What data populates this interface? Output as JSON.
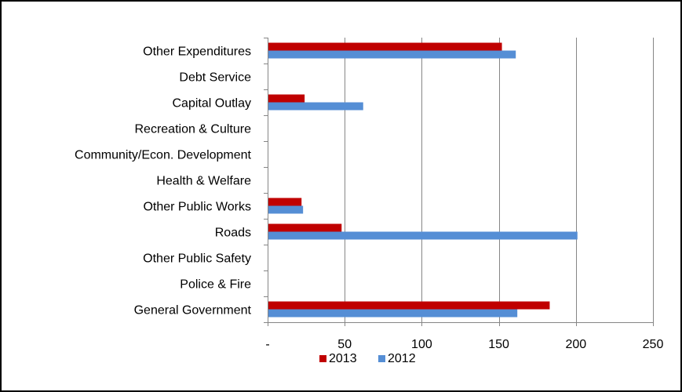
{
  "chart_data": {
    "type": "bar",
    "orientation": "horizontal",
    "categories": [
      "Other Expenditures",
      "Debt Service",
      "Capital Outlay",
      "Recreation & Culture",
      "Community/Econ. Development",
      "Health & Welfare",
      "Other Public Works",
      "Roads",
      "Other Public Safety",
      "Police & Fire",
      "General Government"
    ],
    "series": [
      {
        "name": "2013",
        "color": "#C00000",
        "values": [
          152,
          0,
          24,
          0,
          0,
          0,
          22,
          48,
          0,
          0,
          183
        ]
      },
      {
        "name": "2012",
        "color": "#558ED5",
        "values": [
          161,
          0,
          62,
          0,
          0,
          0,
          23,
          201,
          0,
          0,
          162
        ]
      }
    ],
    "xlim": [
      0,
      250
    ],
    "xticks": [
      0,
      50,
      100,
      150,
      200,
      250
    ],
    "xtick_labels": [
      "-",
      "50",
      "100",
      "150",
      "200",
      "250"
    ],
    "grid": "vertical",
    "legend": "bottom",
    "title": "",
    "xlabel": "",
    "ylabel": ""
  }
}
